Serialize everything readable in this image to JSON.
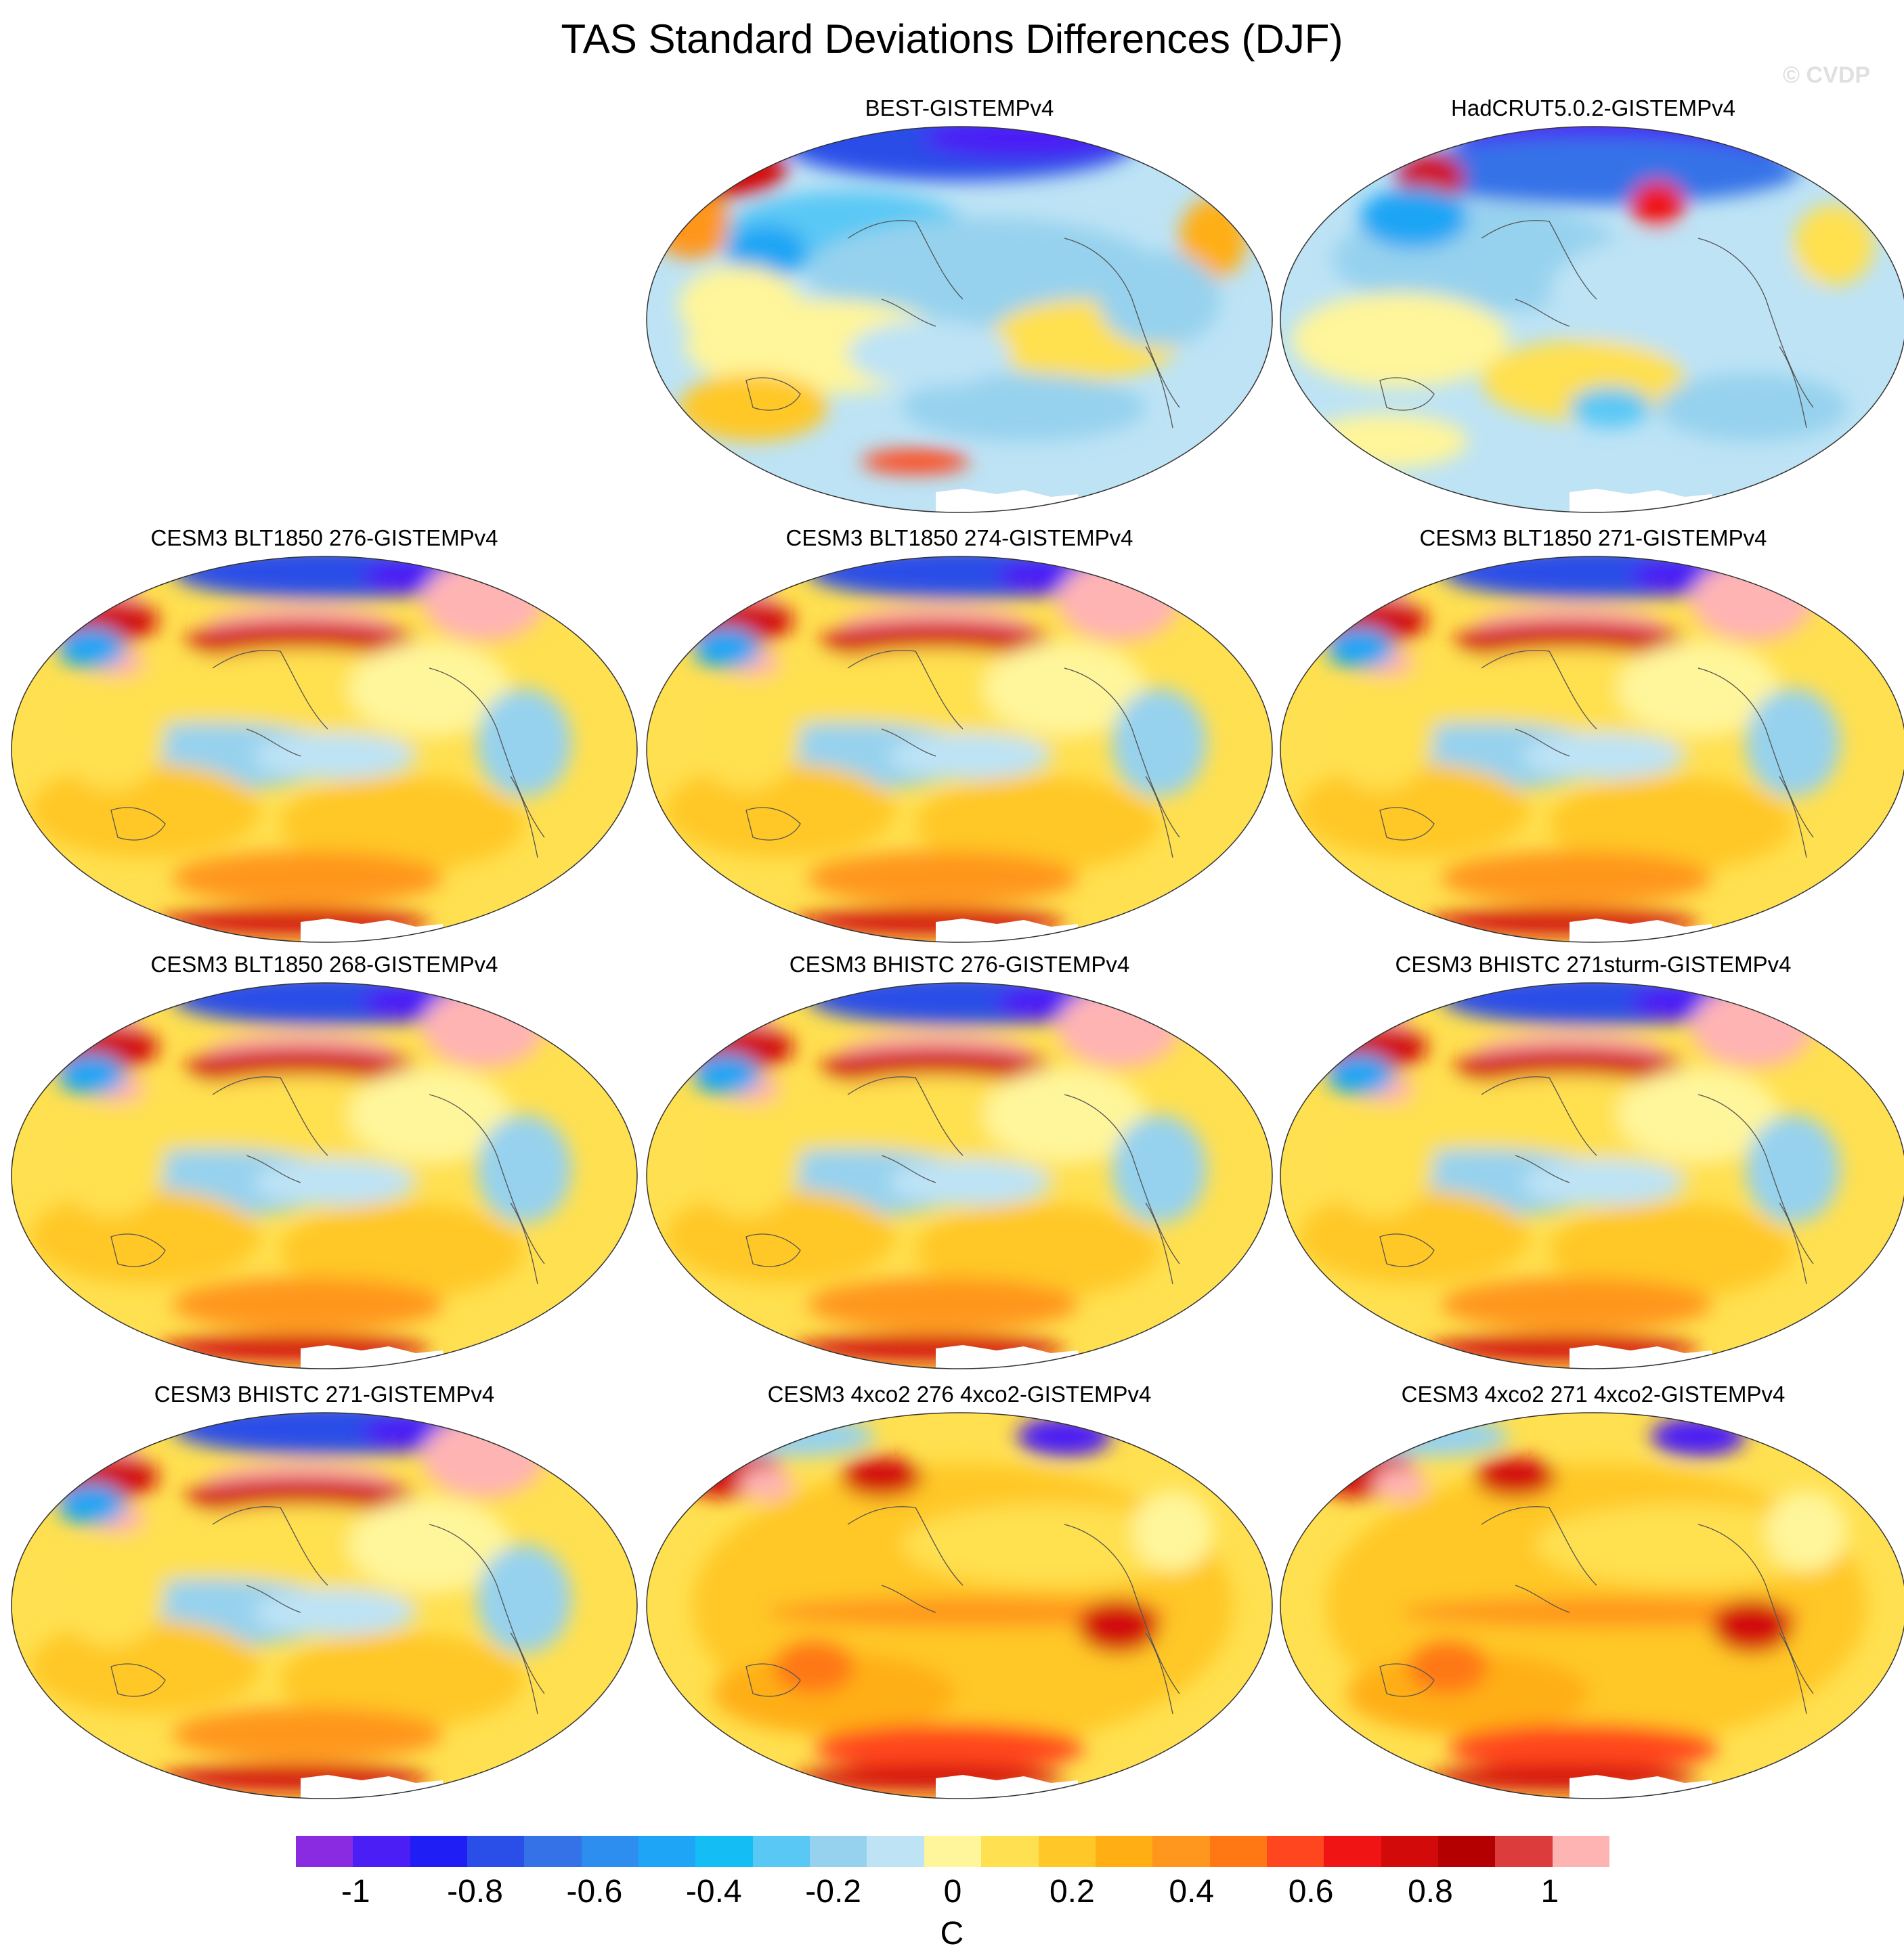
{
  "title": "TAS Standard Deviations Differences (DJF)",
  "credit": "© CVDP",
  "panels": [
    {
      "label": "BEST-GISTEMPv4",
      "scheme": "obs1"
    },
    {
      "label": "HadCRUT5.0.2-GISTEMPv4",
      "scheme": "obs2"
    },
    {
      "label": "CESM3 BLT1850 276-GISTEMPv4",
      "scheme": "model"
    },
    {
      "label": "CESM3 BLT1850 274-GISTEMPv4",
      "scheme": "model"
    },
    {
      "label": "CESM3 BLT1850 271-GISTEMPv4",
      "scheme": "model"
    },
    {
      "label": "CESM3 BLT1850 268-GISTEMPv4",
      "scheme": "model"
    },
    {
      "label": "CESM3 BHISTC 276-GISTEMPv4",
      "scheme": "model"
    },
    {
      "label": "CESM3 BHISTC 271sturm-GISTEMPv4",
      "scheme": "model"
    },
    {
      "label": "CESM3 BHISTC 271-GISTEMPv4",
      "scheme": "model"
    },
    {
      "label": "CESM3 4xco2 276 4xco2-GISTEMPv4",
      "scheme": "co2"
    },
    {
      "label": "CESM3 4xco2 271 4xco2-GISTEMPv4",
      "scheme": "co2"
    }
  ],
  "colorbar": {
    "colors": [
      "#8a2be2",
      "#4b1ef5",
      "#1e1ef5",
      "#2a4ee8",
      "#3572e8",
      "#2e8ef0",
      "#1ea5f5",
      "#14bef5",
      "#5ac8f5",
      "#96d2ee",
      "#bde3f5",
      "#fff59a",
      "#ffe050",
      "#ffc828",
      "#ffaf14",
      "#ff961e",
      "#ff7814",
      "#ff461e",
      "#f01414",
      "#d20a0a",
      "#b40000",
      "#dc3c3c",
      "#ffb4b4"
    ],
    "boundaries": [
      "-1.1",
      "-1",
      "-0.9",
      "-0.8",
      "-0.7",
      "-0.6",
      "-0.5",
      "-0.4",
      "-0.3",
      "-0.2",
      "-0.1",
      "0",
      "0.1",
      "0.2",
      "0.3",
      "0.4",
      "0.5",
      "0.6",
      "0.7",
      "0.8",
      "0.9",
      "1",
      "1.1"
    ],
    "tick_labels": [
      "-1",
      "-0.8",
      "-0.6",
      "-0.4",
      "-0.2",
      "0",
      "0.2",
      "0.4",
      "0.6",
      "0.8",
      "1"
    ],
    "units": "C"
  }
}
